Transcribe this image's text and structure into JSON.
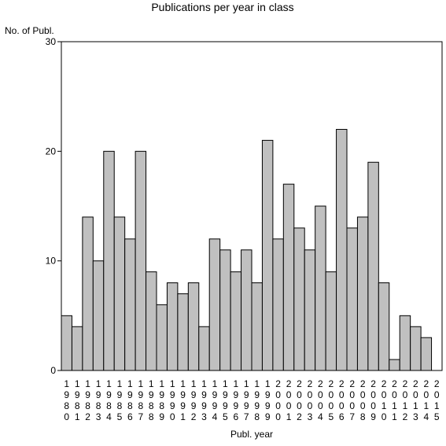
{
  "chart_data": {
    "type": "bar",
    "title": "Publications per year in class",
    "ylabel": "No. of Publ.",
    "xlabel": "Publ. year",
    "ylim": [
      0,
      30
    ],
    "yticks": [
      0,
      10,
      20,
      30
    ],
    "grid": false,
    "legend": "none",
    "categories": [
      "1980",
      "1981",
      "1982",
      "1983",
      "1984",
      "1985",
      "1986",
      "1987",
      "1988",
      "1989",
      "1990",
      "1991",
      "1992",
      "1993",
      "1994",
      "1995",
      "1996",
      "1997",
      "1998",
      "1999",
      "2000",
      "2001",
      "2002",
      "2003",
      "2004",
      "2005",
      "2006",
      "2007",
      "2008",
      "2009",
      "2010",
      "2011",
      "2012",
      "2013",
      "2014",
      "2015"
    ],
    "values": [
      5,
      4,
      14,
      10,
      20,
      14,
      12,
      20,
      9,
      6,
      8,
      7,
      8,
      4,
      12,
      11,
      9,
      11,
      8,
      21,
      12,
      17,
      13,
      11,
      15,
      9,
      22,
      13,
      14,
      19,
      8,
      1,
      5,
      4,
      3,
      0
    ],
    "colors": {
      "bar_fill": "#c0c0c0",
      "bar_stroke": "#000000",
      "axis": "#000000"
    }
  }
}
